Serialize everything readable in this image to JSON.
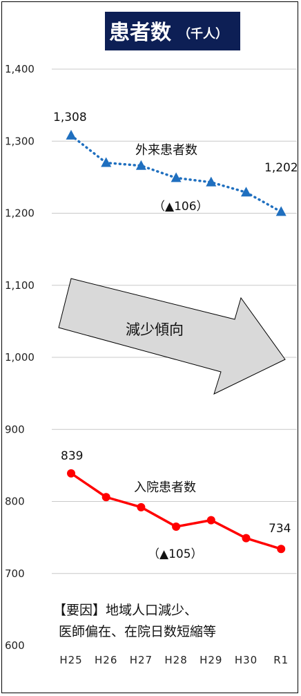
{
  "title": {
    "main": "患者数",
    "unit": "（千人）",
    "bg_color": "#0d1f55",
    "text_color": "#ffffff"
  },
  "chart_data": {
    "type": "line",
    "categories": [
      "H25",
      "H26",
      "H27",
      "H28",
      "H29",
      "H30",
      "R1"
    ],
    "y_ticks": [
      "1,400",
      "1,300",
      "1,200",
      "1,100",
      "1,000",
      "900",
      "800",
      "700",
      "600"
    ],
    "ylim": [
      600,
      1400
    ],
    "grid": true,
    "series": [
      {
        "name": "外来患者数",
        "values": [
          1308,
          1270,
          1266,
          1249,
          1243,
          1229,
          1202
        ],
        "color": "#1f6fbf",
        "style": "dotted",
        "marker": "triangle",
        "labels": {
          "first": "1,308",
          "last": "1,202"
        },
        "change_text": "（▲106）"
      },
      {
        "name": "入院患者数",
        "values": [
          839,
          806,
          792,
          765,
          774,
          749,
          734
        ],
        "color": "#ff0000",
        "style": "solid",
        "marker": "circle",
        "labels": {
          "first": "839",
          "last": "734"
        },
        "change_text": "（▲105）"
      }
    ]
  },
  "trend_arrow": {
    "label": "減少傾向",
    "fill": "#d9d9d9"
  },
  "note": {
    "line1": "【要因】地域人口減少、",
    "line2": "医師偏在、在院日数短縮等"
  }
}
